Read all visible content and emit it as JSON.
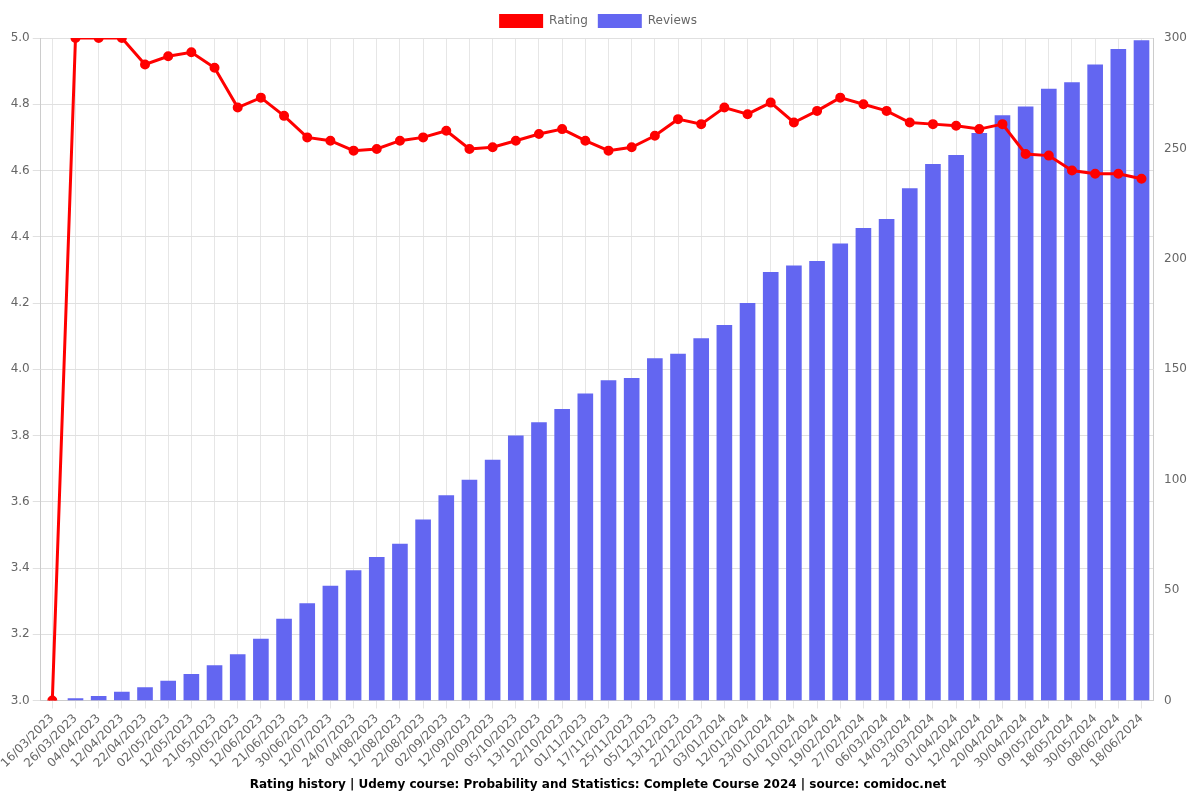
{
  "chart_data": {
    "type": "bar",
    "title": "Rating history | Udemy course: Probability and Statistics: Complete Course 2024 | source: comidoc.net",
    "categories": [
      "16/03/2023",
      "26/03/2023",
      "04/04/2023",
      "12/04/2023",
      "22/04/2023",
      "02/05/2023",
      "12/05/2023",
      "21/05/2023",
      "30/05/2023",
      "12/06/2023",
      "21/06/2023",
      "30/06/2023",
      "12/07/2023",
      "24/07/2023",
      "04/08/2023",
      "12/08/2023",
      "22/08/2023",
      "02/09/2023",
      "12/09/2023",
      "20/09/2023",
      "05/10/2023",
      "13/10/2023",
      "22/10/2023",
      "01/11/2023",
      "17/11/2023",
      "25/11/2023",
      "05/12/2023",
      "13/12/2023",
      "22/12/2023",
      "03/01/2024",
      "12/01/2024",
      "23/01/2024",
      "01/02/2024",
      "10/02/2024",
      "19/02/2024",
      "27/02/2024",
      "06/03/2024",
      "14/03/2024",
      "23/03/2024",
      "01/04/2024",
      "12/04/2024",
      "20/04/2024",
      "30/04/2024",
      "09/05/2024",
      "18/05/2024",
      "30/05/2024",
      "08/06/2024",
      "18/06/2024"
    ],
    "series": [
      {
        "name": "Rating",
        "type": "line",
        "color": "#ff0000",
        "marker": "circle",
        "line_style": "solid",
        "values": [
          3.0,
          5.0,
          5.0,
          5.0,
          4.92,
          4.945,
          4.957,
          4.91,
          4.79,
          4.82,
          4.765,
          4.7,
          4.69,
          4.66,
          4.665,
          4.69,
          4.7,
          4.72,
          4.665,
          4.67,
          4.69,
          4.71,
          4.725,
          4.69,
          4.66,
          4.67,
          4.705,
          4.755,
          4.74,
          4.79,
          4.77,
          4.805,
          4.745,
          4.78,
          4.82,
          4.8,
          4.78,
          4.745,
          4.74,
          4.735,
          4.725,
          4.74,
          4.65,
          4.645,
          4.6,
          4.59,
          4.59,
          4.575
        ]
      },
      {
        "name": "Reviews",
        "type": "bar",
        "color": "#6366f1",
        "axis": "y2",
        "values": [
          0,
          1,
          2,
          4,
          6,
          9,
          12,
          16,
          21,
          28,
          37,
          44,
          52,
          59,
          65,
          71,
          82,
          93,
          100,
          109,
          120,
          126,
          132,
          139,
          145,
          146,
          155,
          157,
          164,
          170,
          180,
          194,
          197,
          199,
          207,
          214,
          218,
          232,
          243,
          247,
          257,
          265,
          269,
          277,
          280,
          288,
          295,
          299
        ]
      }
    ],
    "ylim": [
      3,
      5
    ],
    "yticks": [
      {
        "value": 3,
        "label": "3.0"
      },
      3.2,
      3.4,
      3.6,
      3.8,
      {
        "value": 4,
        "label": "4.0"
      },
      4.2,
      4.4,
      4.6,
      4.8,
      {
        "value": 5,
        "label": "5.0"
      }
    ],
    "y2lim": [
      0,
      300
    ],
    "y2ticks": [
      0,
      50,
      100,
      150,
      200,
      250,
      300
    ],
    "grid": true,
    "legend": "top"
  }
}
